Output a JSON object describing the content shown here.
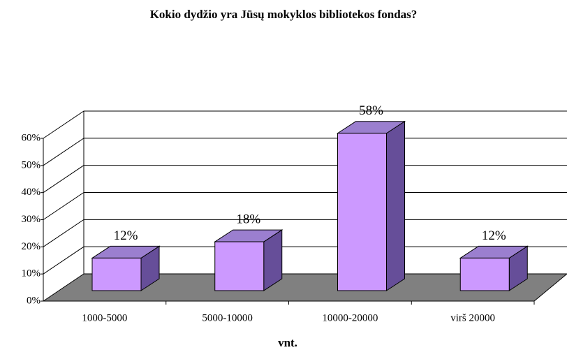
{
  "chart_data": {
    "type": "bar3d",
    "title": "Kokio dydžio yra Jūsų mokyklos bibliotekos fondas?",
    "categories": [
      "1000-5000",
      "5000-10000",
      "10000-20000",
      "virš 20000"
    ],
    "values": [
      12,
      18,
      58,
      12
    ],
    "value_labels": [
      "12%",
      "18%",
      "58%",
      "12%"
    ],
    "x_label": "vnt.",
    "ylim": [
      0,
      60
    ],
    "yticks": [
      {
        "value": 0,
        "label": "0%"
      },
      {
        "value": 10,
        "label": "10%"
      },
      {
        "value": 20,
        "label": "20%"
      },
      {
        "value": 30,
        "label": "30%"
      },
      {
        "value": 40,
        "label": "40%"
      },
      {
        "value": 50,
        "label": "50%"
      },
      {
        "value": 60,
        "label": "60%"
      }
    ],
    "grid": true,
    "color": "#cc99ff"
  }
}
